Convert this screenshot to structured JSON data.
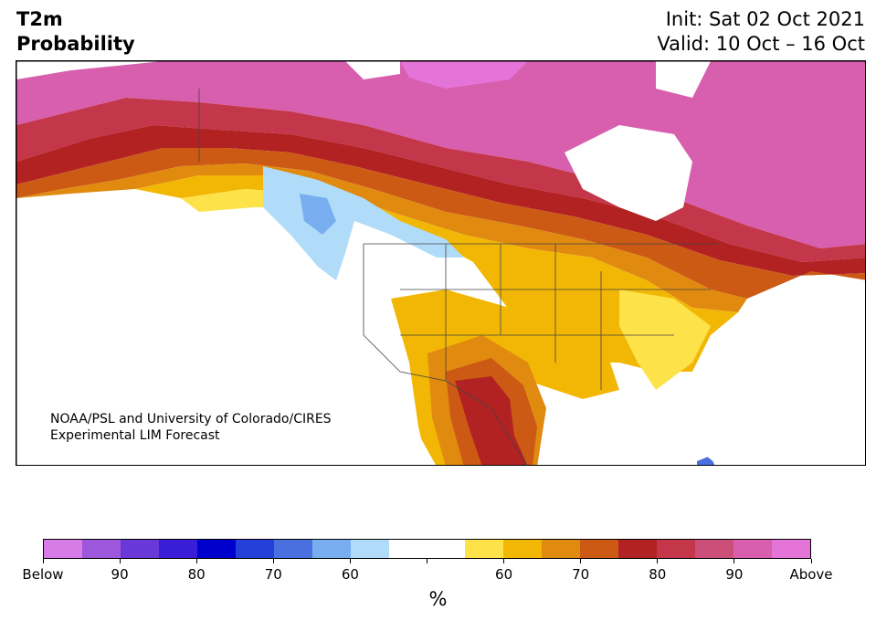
{
  "header": {
    "title_line1": "T2m",
    "title_line2": "Probability",
    "init": "Init: Sat 02 Oct 2021",
    "valid": "Valid: 10 Oct – 16 Oct"
  },
  "map": {
    "credit_line1": "NOAA/PSL and University of Colorado/CIRES",
    "credit_line2": "Experimental LIM Forecast"
  },
  "colorbar": {
    "colors": [
      "#d77be6",
      "#9d57dd",
      "#6a38d8",
      "#3a1dd6",
      "#0000cc",
      "#2540d8",
      "#4a70e0",
      "#78aef0",
      "#b0dcfa",
      "#ffffff",
      "#ffffff",
      "#fde24a",
      "#f2b705",
      "#e08a10",
      "#cc5a14",
      "#b22222",
      "#c4364a",
      "#cc4f7a",
      "#d85fae",
      "#e574d9"
    ],
    "tick_labels": [
      "Below",
      "90",
      "80",
      "70",
      "60",
      "",
      "60",
      "70",
      "80",
      "90",
      "Above"
    ],
    "unit": "%"
  }
}
